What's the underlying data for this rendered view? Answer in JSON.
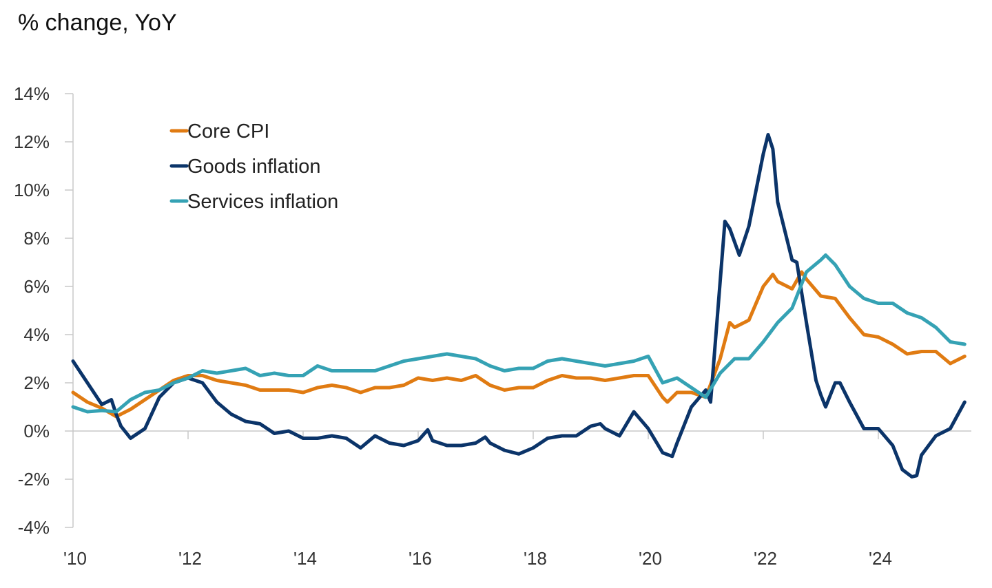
{
  "chart_data": {
    "type": "line",
    "title": "% change, YoY",
    "xlabel": "",
    "ylabel": "",
    "ylim": [
      -4,
      14
    ],
    "yticks": [
      -4,
      -2,
      0,
      2,
      4,
      6,
      8,
      10,
      12,
      14
    ],
    "ytick_labels": [
      "-4%",
      "-2%",
      "0%",
      "2%",
      "4%",
      "6%",
      "8%",
      "10%",
      "12%",
      "14%"
    ],
    "xlim": [
      "2010-01",
      "2025-09"
    ],
    "xticks": [
      "2010-01",
      "2012-01",
      "2014-01",
      "2016-01",
      "2018-01",
      "2020-01",
      "2022-01",
      "2024-01"
    ],
    "xtick_labels": [
      "'10",
      "'12",
      "'14",
      "'16",
      "'18",
      "'20",
      "'22",
      "'24"
    ],
    "grid": false,
    "legend_position": "top-left",
    "series": [
      {
        "name": "Core CPI",
        "color": "#E07B12",
        "points": [
          [
            "2010-01",
            1.6
          ],
          [
            "2010-04",
            1.2
          ],
          [
            "2010-07",
            0.95
          ],
          [
            "2010-10",
            0.6
          ],
          [
            "2011-01",
            0.9
          ],
          [
            "2011-04",
            1.3
          ],
          [
            "2011-07",
            1.7
          ],
          [
            "2011-10",
            2.1
          ],
          [
            "2012-01",
            2.3
          ],
          [
            "2012-04",
            2.3
          ],
          [
            "2012-07",
            2.1
          ],
          [
            "2012-10",
            2.0
          ],
          [
            "2013-01",
            1.9
          ],
          [
            "2013-04",
            1.7
          ],
          [
            "2013-07",
            1.7
          ],
          [
            "2013-10",
            1.7
          ],
          [
            "2014-01",
            1.6
          ],
          [
            "2014-04",
            1.8
          ],
          [
            "2014-07",
            1.9
          ],
          [
            "2014-10",
            1.8
          ],
          [
            "2015-01",
            1.6
          ],
          [
            "2015-04",
            1.8
          ],
          [
            "2015-07",
            1.8
          ],
          [
            "2015-10",
            1.9
          ],
          [
            "2016-01",
            2.2
          ],
          [
            "2016-04",
            2.1
          ],
          [
            "2016-07",
            2.2
          ],
          [
            "2016-10",
            2.1
          ],
          [
            "2017-01",
            2.3
          ],
          [
            "2017-04",
            1.9
          ],
          [
            "2017-07",
            1.7
          ],
          [
            "2017-10",
            1.8
          ],
          [
            "2018-01",
            1.8
          ],
          [
            "2018-04",
            2.1
          ],
          [
            "2018-07",
            2.3
          ],
          [
            "2018-10",
            2.2
          ],
          [
            "2019-01",
            2.2
          ],
          [
            "2019-04",
            2.1
          ],
          [
            "2019-07",
            2.2
          ],
          [
            "2019-10",
            2.3
          ],
          [
            "2020-01",
            2.3
          ],
          [
            "2020-04",
            1.4
          ],
          [
            "2020-05",
            1.2
          ],
          [
            "2020-07",
            1.6
          ],
          [
            "2020-10",
            1.6
          ],
          [
            "2021-01",
            1.4
          ],
          [
            "2021-04",
            3.0
          ],
          [
            "2021-06",
            4.5
          ],
          [
            "2021-07",
            4.3
          ],
          [
            "2021-10",
            4.6
          ],
          [
            "2022-01",
            6.0
          ],
          [
            "2022-03",
            6.5
          ],
          [
            "2022-04",
            6.2
          ],
          [
            "2022-07",
            5.9
          ],
          [
            "2022-09",
            6.6
          ],
          [
            "2022-10",
            6.3
          ],
          [
            "2023-01",
            5.6
          ],
          [
            "2023-04",
            5.5
          ],
          [
            "2023-07",
            4.7
          ],
          [
            "2023-10",
            4.0
          ],
          [
            "2024-01",
            3.9
          ],
          [
            "2024-04",
            3.6
          ],
          [
            "2024-07",
            3.2
          ],
          [
            "2024-10",
            3.3
          ],
          [
            "2025-01",
            3.3
          ],
          [
            "2025-04",
            2.8
          ],
          [
            "2025-07",
            3.1
          ]
        ]
      },
      {
        "name": "Goods inflation",
        "color": "#0B3469",
        "points": [
          [
            "2010-01",
            2.9
          ],
          [
            "2010-04",
            2.0
          ],
          [
            "2010-07",
            1.1
          ],
          [
            "2010-09",
            1.3
          ],
          [
            "2010-10",
            0.7
          ],
          [
            "2010-11",
            0.2
          ],
          [
            "2011-01",
            -0.3
          ],
          [
            "2011-04",
            0.1
          ],
          [
            "2011-07",
            1.4
          ],
          [
            "2011-10",
            2.0
          ],
          [
            "2012-01",
            2.2
          ],
          [
            "2012-04",
            2.0
          ],
          [
            "2012-07",
            1.2
          ],
          [
            "2012-10",
            0.7
          ],
          [
            "2013-01",
            0.4
          ],
          [
            "2013-04",
            0.3
          ],
          [
            "2013-07",
            -0.1
          ],
          [
            "2013-10",
            0.0
          ],
          [
            "2014-01",
            -0.3
          ],
          [
            "2014-04",
            -0.3
          ],
          [
            "2014-07",
            -0.2
          ],
          [
            "2014-10",
            -0.3
          ],
          [
            "2015-01",
            -0.7
          ],
          [
            "2015-04",
            -0.2
          ],
          [
            "2015-07",
            -0.5
          ],
          [
            "2015-10",
            -0.6
          ],
          [
            "2016-01",
            -0.4
          ],
          [
            "2016-03",
            0.05
          ],
          [
            "2016-04",
            -0.4
          ],
          [
            "2016-07",
            -0.6
          ],
          [
            "2016-10",
            -0.6
          ],
          [
            "2017-01",
            -0.5
          ],
          [
            "2017-03",
            -0.25
          ],
          [
            "2017-04",
            -0.5
          ],
          [
            "2017-07",
            -0.8
          ],
          [
            "2017-10",
            -0.95
          ],
          [
            "2018-01",
            -0.7
          ],
          [
            "2018-04",
            -0.3
          ],
          [
            "2018-07",
            -0.2
          ],
          [
            "2018-10",
            -0.2
          ],
          [
            "2019-01",
            0.2
          ],
          [
            "2019-03",
            0.3
          ],
          [
            "2019-04",
            0.1
          ],
          [
            "2019-07",
            -0.2
          ],
          [
            "2019-10",
            0.8
          ],
          [
            "2020-01",
            0.1
          ],
          [
            "2020-04",
            -0.9
          ],
          [
            "2020-06",
            -1.05
          ],
          [
            "2020-07",
            -0.5
          ],
          [
            "2020-10",
            1.0
          ],
          [
            "2021-01",
            1.7
          ],
          [
            "2021-02",
            1.2
          ],
          [
            "2021-05",
            8.7
          ],
          [
            "2021-06",
            8.4
          ],
          [
            "2021-08",
            7.3
          ],
          [
            "2021-10",
            8.5
          ],
          [
            "2022-01",
            11.5
          ],
          [
            "2022-02",
            12.3
          ],
          [
            "2022-03",
            11.7
          ],
          [
            "2022-04",
            9.5
          ],
          [
            "2022-07",
            7.1
          ],
          [
            "2022-08",
            7.0
          ],
          [
            "2022-10",
            4.5
          ],
          [
            "2022-12",
            2.1
          ],
          [
            "2023-01",
            1.5
          ],
          [
            "2023-02",
            1.0
          ],
          [
            "2023-04",
            2.0
          ],
          [
            "2023-05",
            2.0
          ],
          [
            "2023-07",
            1.2
          ],
          [
            "2023-10",
            0.1
          ],
          [
            "2024-01",
            0.1
          ],
          [
            "2024-04",
            -0.6
          ],
          [
            "2024-06",
            -1.6
          ],
          [
            "2024-08",
            -1.9
          ],
          [
            "2024-09",
            -1.85
          ],
          [
            "2024-10",
            -1.0
          ],
          [
            "2025-01",
            -0.2
          ],
          [
            "2025-04",
            0.1
          ],
          [
            "2025-07",
            1.2
          ]
        ]
      },
      {
        "name": "Services inflation",
        "color": "#35A2B4",
        "points": [
          [
            "2010-01",
            1.0
          ],
          [
            "2010-04",
            0.8
          ],
          [
            "2010-07",
            0.85
          ],
          [
            "2010-10",
            0.8
          ],
          [
            "2011-01",
            1.3
          ],
          [
            "2011-04",
            1.6
          ],
          [
            "2011-07",
            1.7
          ],
          [
            "2011-10",
            2.0
          ],
          [
            "2012-01",
            2.2
          ],
          [
            "2012-04",
            2.5
          ],
          [
            "2012-07",
            2.4
          ],
          [
            "2012-10",
            2.5
          ],
          [
            "2013-01",
            2.6
          ],
          [
            "2013-04",
            2.3
          ],
          [
            "2013-07",
            2.4
          ],
          [
            "2013-10",
            2.3
          ],
          [
            "2014-01",
            2.3
          ],
          [
            "2014-04",
            2.7
          ],
          [
            "2014-07",
            2.5
          ],
          [
            "2014-10",
            2.5
          ],
          [
            "2015-01",
            2.5
          ],
          [
            "2015-04",
            2.5
          ],
          [
            "2015-07",
            2.7
          ],
          [
            "2015-10",
            2.9
          ],
          [
            "2016-01",
            3.0
          ],
          [
            "2016-04",
            3.1
          ],
          [
            "2016-07",
            3.2
          ],
          [
            "2016-10",
            3.1
          ],
          [
            "2017-01",
            3.0
          ],
          [
            "2017-04",
            2.7
          ],
          [
            "2017-07",
            2.5
          ],
          [
            "2017-10",
            2.6
          ],
          [
            "2018-01",
            2.6
          ],
          [
            "2018-04",
            2.9
          ],
          [
            "2018-07",
            3.0
          ],
          [
            "2018-10",
            2.9
          ],
          [
            "2019-01",
            2.8
          ],
          [
            "2019-04",
            2.7
          ],
          [
            "2019-07",
            2.8
          ],
          [
            "2019-10",
            2.9
          ],
          [
            "2020-01",
            3.1
          ],
          [
            "2020-04",
            2.0
          ],
          [
            "2020-07",
            2.2
          ],
          [
            "2020-10",
            1.8
          ],
          [
            "2021-01",
            1.4
          ],
          [
            "2021-04",
            2.4
          ],
          [
            "2021-07",
            3.0
          ],
          [
            "2021-10",
            3.0
          ],
          [
            "2022-01",
            3.7
          ],
          [
            "2022-04",
            4.5
          ],
          [
            "2022-07",
            5.1
          ],
          [
            "2022-10",
            6.6
          ],
          [
            "2023-01",
            7.1
          ],
          [
            "2023-02",
            7.3
          ],
          [
            "2023-04",
            6.9
          ],
          [
            "2023-07",
            6.0
          ],
          [
            "2023-10",
            5.5
          ],
          [
            "2024-01",
            5.3
          ],
          [
            "2024-04",
            5.3
          ],
          [
            "2024-07",
            4.9
          ],
          [
            "2024-10",
            4.7
          ],
          [
            "2025-01",
            4.3
          ],
          [
            "2025-04",
            3.7
          ],
          [
            "2025-07",
            3.6
          ]
        ]
      }
    ]
  }
}
